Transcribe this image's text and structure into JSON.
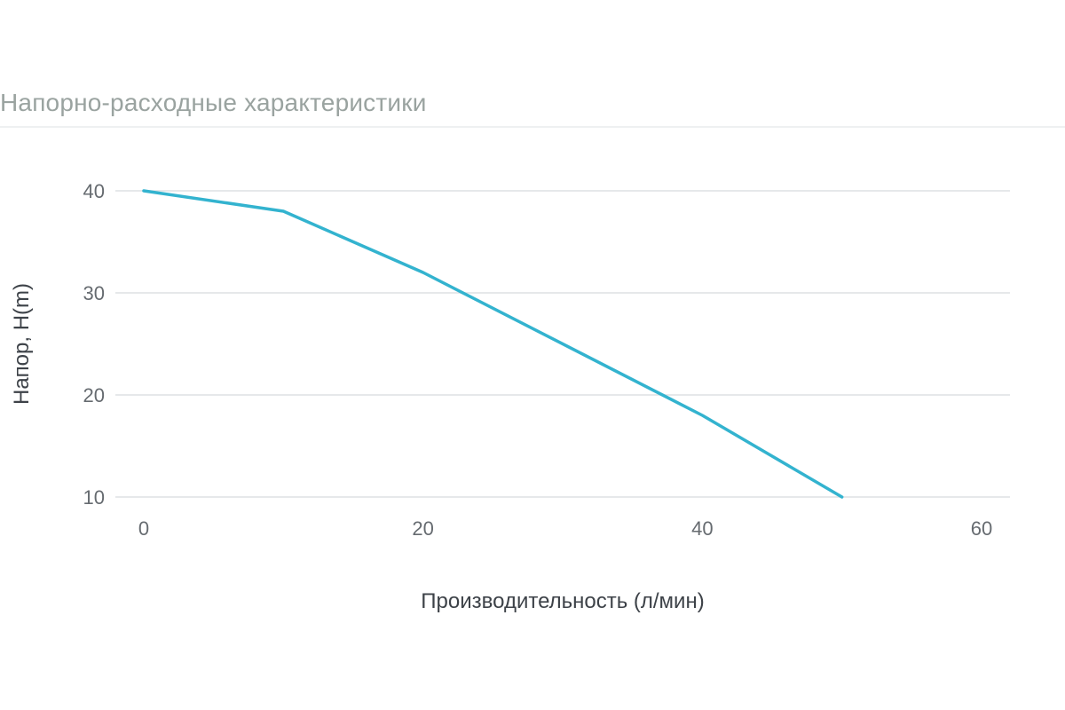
{
  "section": {
    "title": "Напорно-расходные характеристики"
  },
  "colors": {
    "line": "#33b3cf",
    "grid": "#dde0e3",
    "tick_text": "#666b70",
    "title_text": "#9aa3a0"
  },
  "chart_data": {
    "type": "line",
    "xlabel": "Производительность (л/мин)",
    "ylabel": "Напор, H(m)",
    "xlim": [
      0,
      60
    ],
    "ylim": [
      10,
      40
    ],
    "x_ticks": [
      0,
      20,
      40,
      60
    ],
    "y_ticks": [
      10,
      20,
      30,
      40
    ],
    "grid": true,
    "series": [
      {
        "x": [
          0,
          10,
          20,
          40,
          50
        ],
        "y": [
          40,
          38,
          32,
          18,
          10
        ]
      }
    ]
  }
}
